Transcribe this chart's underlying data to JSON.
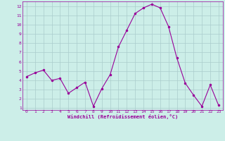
{
  "x": [
    0,
    1,
    2,
    3,
    4,
    5,
    6,
    7,
    8,
    9,
    10,
    11,
    12,
    13,
    14,
    15,
    16,
    17,
    18,
    19,
    20,
    21,
    22,
    23
  ],
  "y": [
    4.4,
    4.8,
    5.1,
    4.0,
    4.2,
    2.6,
    3.2,
    3.8,
    1.2,
    3.1,
    4.6,
    7.6,
    9.4,
    11.2,
    11.8,
    12.2,
    11.8,
    9.8,
    6.4,
    3.7,
    2.4,
    1.2,
    3.5,
    1.3
  ],
  "line_color": "#990099",
  "marker": ".",
  "marker_size": 3,
  "bg_color": "#cceee8",
  "grid_color": "#aacccc",
  "xlabel": "Windchill (Refroidissement éolien,°C)",
  "xlabel_color": "#990099",
  "tick_color": "#990099",
  "xlim": [
    -0.5,
    23.5
  ],
  "ylim": [
    0.8,
    12.5
  ],
  "yticks": [
    1,
    2,
    3,
    4,
    5,
    6,
    7,
    8,
    9,
    10,
    11,
    12
  ],
  "xticks": [
    0,
    1,
    2,
    3,
    4,
    5,
    6,
    7,
    8,
    9,
    10,
    11,
    12,
    13,
    14,
    15,
    16,
    17,
    18,
    19,
    20,
    21,
    22,
    23
  ]
}
